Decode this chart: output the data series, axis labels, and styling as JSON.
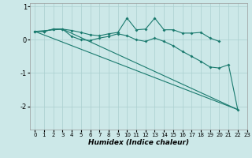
{
  "xlabel": "Humidex (Indice chaleur)",
  "bg_color": "#cce8e8",
  "grid_color": "#aacfcf",
  "line_color": "#1a7a6e",
  "xlim": [
    -0.5,
    23
  ],
  "ylim": [
    -2.7,
    1.1
  ],
  "yticks": [
    1,
    0,
    -1,
    -2
  ],
  "xticks": [
    0,
    1,
    2,
    3,
    4,
    5,
    6,
    7,
    8,
    9,
    10,
    11,
    12,
    13,
    14,
    15,
    16,
    17,
    18,
    19,
    20,
    21,
    22,
    23
  ],
  "series1_x": [
    0,
    1,
    2,
    3,
    4,
    5,
    6,
    7,
    8,
    9,
    10,
    11,
    12,
    13,
    14,
    15,
    16,
    17,
    18,
    19,
    20
  ],
  "series1_y": [
    0.25,
    0.25,
    0.32,
    0.32,
    0.28,
    0.22,
    0.15,
    0.12,
    0.18,
    0.22,
    0.65,
    0.3,
    0.32,
    0.65,
    0.3,
    0.3,
    0.2,
    0.2,
    0.22,
    0.05,
    -0.05
  ],
  "series2_x": [
    0,
    1,
    2,
    3,
    4,
    5,
    6,
    7,
    8,
    9,
    10,
    11,
    12,
    13,
    14,
    15,
    16,
    17,
    18,
    19,
    20,
    21,
    22
  ],
  "series2_y": [
    0.25,
    0.25,
    0.32,
    0.32,
    0.1,
    0.0,
    -0.02,
    0.05,
    0.1,
    0.18,
    0.12,
    0.0,
    -0.05,
    0.05,
    -0.05,
    -0.18,
    -0.35,
    -0.5,
    -0.65,
    -0.82,
    -0.85,
    -0.75,
    -2.1
  ],
  "series3_x": [
    0,
    22
  ],
  "series3_y": [
    0.25,
    -2.1
  ],
  "series4_x": [
    0,
    3,
    22
  ],
  "series4_y": [
    0.25,
    0.32,
    -2.1
  ]
}
